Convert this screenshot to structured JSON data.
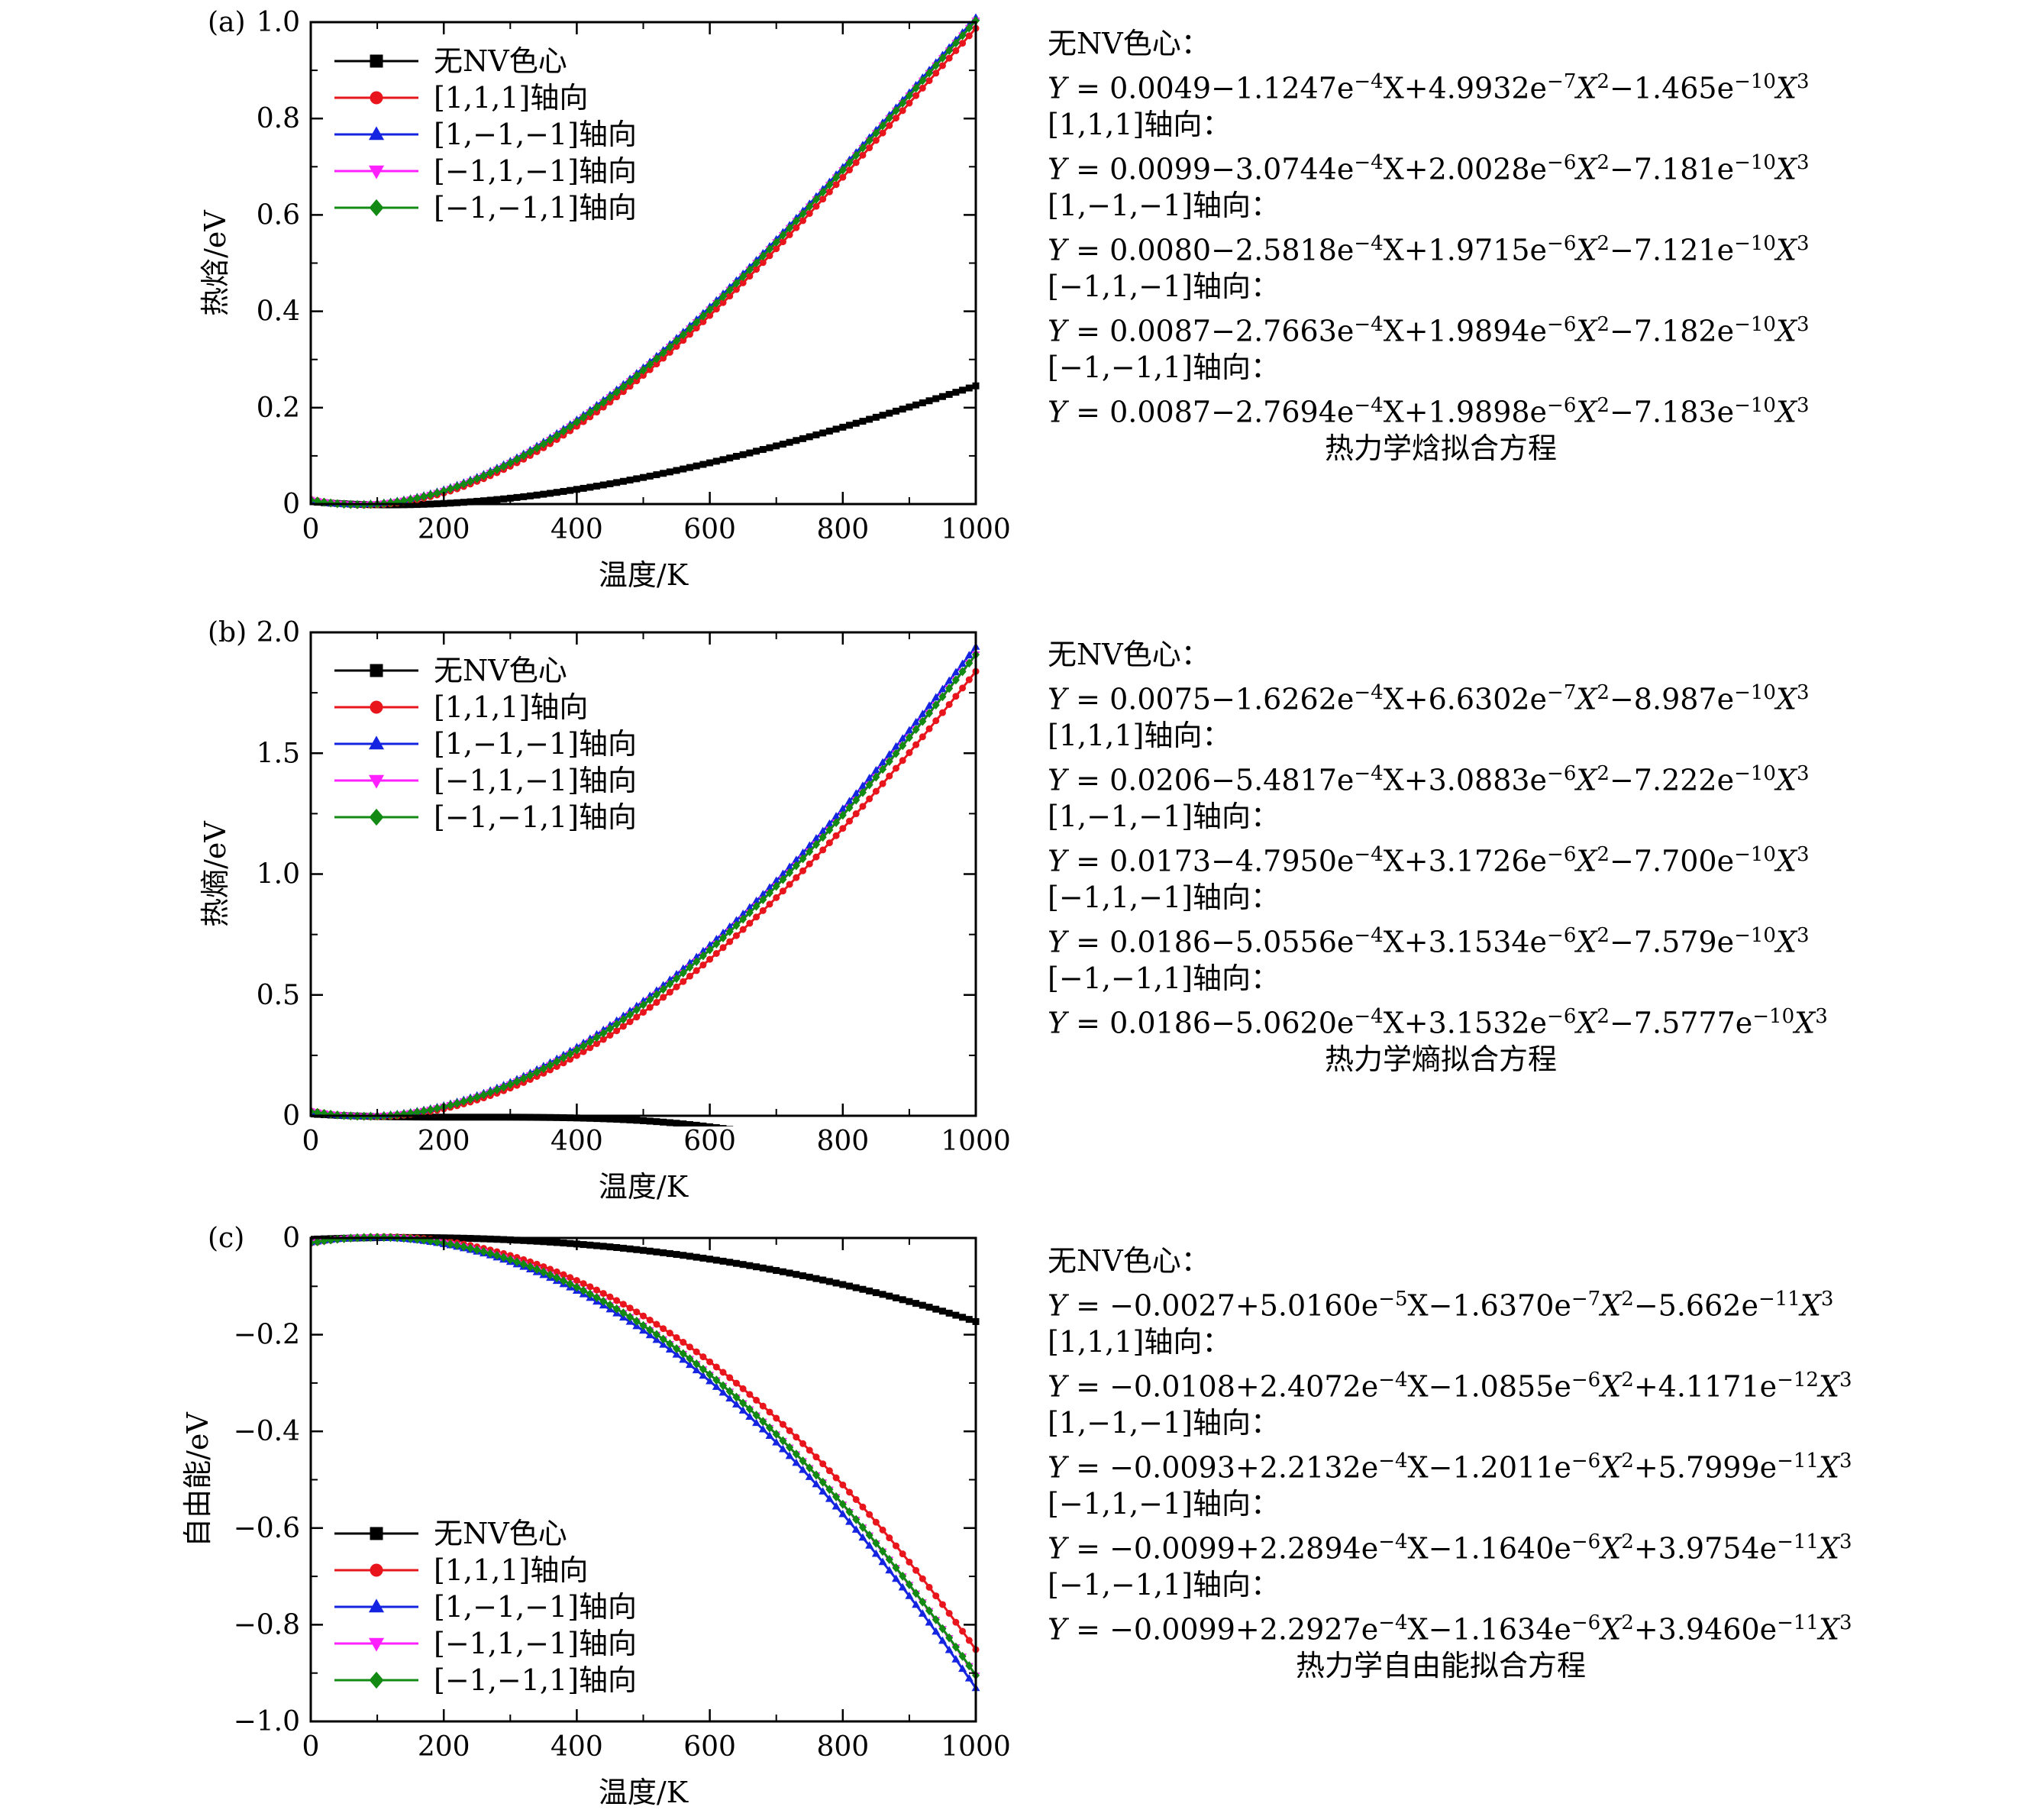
{
  "colors": {
    "no_nv": "#000000",
    "axis_111": "#e8161c",
    "axis_1m1m1": "#1424e0",
    "axis_m11m1": "#ff20ff",
    "axis_m1m11": "#138a13"
  },
  "chart_data": [
    {
      "id": "a",
      "type": "line",
      "panel_label": "(a)",
      "xlabel": "温度/K",
      "ylabel": "热焓/eV",
      "xlim": [
        0,
        1000
      ],
      "ylim": [
        0,
        1.0
      ],
      "xticks": [
        0,
        200,
        400,
        600,
        800,
        1000
      ],
      "xtick_labels": [
        "0",
        "200",
        "400",
        "600",
        "800",
        "1000"
      ],
      "yticks": [
        0,
        0.2,
        0.4,
        0.6,
        0.8,
        1.0
      ],
      "ytick_labels": [
        "0",
        "0.2",
        "0.4",
        "0.6",
        "0.8",
        "1.0"
      ],
      "legend_position": "top-left",
      "series": [
        {
          "name": "无NV色心",
          "marker": "square",
          "color": "no_nv",
          "coef": [
            0.0049,
            -0.00011247,
            4.9932e-07,
            -1.465e-10
          ]
        },
        {
          "name": "[1,1,1]轴向",
          "marker": "circle",
          "color": "axis_111",
          "coef": [
            0.0099,
            -0.00030744,
            2.0028e-06,
            -7.181e-10
          ]
        },
        {
          "name": "[1,−1,−1]轴向",
          "marker": "triangle-up",
          "color": "axis_1m1m1",
          "coef": [
            0.008,
            -0.00025818,
            1.9715e-06,
            -7.121e-10
          ]
        },
        {
          "name": "[−1,1,−1]轴向",
          "marker": "triangle-down",
          "color": "axis_m11m1",
          "coef": [
            0.0087,
            -0.00027663,
            1.9894e-06,
            -7.182e-10
          ]
        },
        {
          "name": "[−1,−1,1]轴向",
          "marker": "diamond",
          "color": "axis_m1m11",
          "coef": [
            0.0087,
            -0.00027694,
            1.9898e-06,
            -7.183e-10
          ]
        }
      ]
    },
    {
      "id": "b",
      "type": "line",
      "panel_label": "(b)",
      "xlabel": "温度/K",
      "ylabel": "热熵/eV",
      "xlim": [
        0,
        1000
      ],
      "ylim": [
        0,
        2.0
      ],
      "xticks": [
        0,
        200,
        400,
        600,
        800,
        1000
      ],
      "xtick_labels": [
        "0",
        "200",
        "400",
        "600",
        "800",
        "1000"
      ],
      "yticks": [
        0,
        0.5,
        1.0,
        1.5,
        2.0
      ],
      "ytick_labels": [
        "0",
        "0.5",
        "1.0",
        "1.5",
        "2.0"
      ],
      "legend_position": "top-left",
      "series": [
        {
          "name": "无NV色心",
          "marker": "square",
          "color": "no_nv",
          "coef": [
            0.0075,
            -0.00016262,
            6.6302e-07,
            -8.987e-10
          ]
        },
        {
          "name": "[1,1,1]轴向",
          "marker": "circle",
          "color": "axis_111",
          "coef": [
            0.0206,
            -0.00054817,
            3.0883e-06,
            -7.222e-10
          ]
        },
        {
          "name": "[1,−1,−1]轴向",
          "marker": "triangle-up",
          "color": "axis_1m1m1",
          "coef": [
            0.0173,
            -0.0004795,
            3.1726e-06,
            -7.7e-10
          ]
        },
        {
          "name": "[−1,1,−1]轴向",
          "marker": "triangle-down",
          "color": "axis_m11m1",
          "coef": [
            0.0186,
            -0.00050556,
            3.1534e-06,
            -7.579e-10
          ]
        },
        {
          "name": "[−1,−1,1]轴向",
          "marker": "diamond",
          "color": "axis_m1m11",
          "coef": [
            0.0186,
            -0.0005062,
            3.1532e-06,
            -7.5777e-10
          ]
        }
      ]
    },
    {
      "id": "c",
      "type": "line",
      "panel_label": "(c)",
      "xlabel": "温度/K",
      "ylabel": "自由能/eV",
      "xlim": [
        0,
        1000
      ],
      "ylim": [
        -1.0,
        0
      ],
      "xticks": [
        0,
        200,
        400,
        600,
        800,
        1000
      ],
      "xtick_labels": [
        "0",
        "200",
        "400",
        "600",
        "800",
        "1000"
      ],
      "yticks": [
        0,
        -0.2,
        -0.4,
        -0.6,
        -0.8,
        -1.0
      ],
      "ytick_labels": [
        "0",
        "−0.2",
        "−0.4",
        "−0.6",
        "−0.8",
        "−1.0"
      ],
      "legend_position": "bottom-left",
      "series": [
        {
          "name": "无NV色心",
          "marker": "square",
          "color": "no_nv",
          "coef": [
            -0.0027,
            5.016e-05,
            -1.637e-07,
            -5.662e-11
          ]
        },
        {
          "name": "[1,1,1]轴向",
          "marker": "circle",
          "color": "axis_111",
          "coef": [
            -0.0108,
            0.00024072,
            -1.0855e-06,
            4.1171e-12
          ]
        },
        {
          "name": "[1,−1,−1]轴向",
          "marker": "triangle-up",
          "color": "axis_1m1m1",
          "coef": [
            -0.0093,
            0.00022132,
            -1.2011e-06,
            5.7999e-11
          ]
        },
        {
          "name": "[−1,1,−1]轴向",
          "marker": "triangle-down",
          "color": "axis_m11m1",
          "coef": [
            -0.0099,
            0.00022894,
            -1.164e-06,
            3.9754e-11
          ]
        },
        {
          "name": "[−1,−1,1]轴向",
          "marker": "diamond",
          "color": "axis_m1m11",
          "coef": [
            -0.0099,
            0.00022927,
            -1.1634e-06,
            3.946e-11
          ]
        }
      ]
    }
  ],
  "equations": {
    "a": {
      "caption": "热力学焓拟合方程",
      "items": [
        {
          "name": "无NV色心：",
          "y": "Y",
          "eq": " = 0.0049",
          "t1": "−1.1247e",
          "e1": "−4",
          "t2": "X+4.9932e",
          "e2": "−7",
          "t3": "X",
          "p3": "2",
          "t4": "−1.465e",
          "e4": "−10",
          "t5": "X",
          "p5": "3"
        },
        {
          "name": "[1,1,1]轴向：",
          "y": "Y",
          "eq": " = 0.0099",
          "t1": "−3.0744e",
          "e1": "−4",
          "t2": "X+2.0028e",
          "e2": "−6",
          "t3": "X",
          "p3": "2",
          "t4": "−7.181e",
          "e4": "−10",
          "t5": "X",
          "p5": "3"
        },
        {
          "name": "[1,−1,−1]轴向：",
          "y": "Y",
          "eq": " = 0.0080",
          "t1": "−2.5818e",
          "e1": "−4",
          "t2": "X+1.9715e",
          "e2": "−6",
          "t3": "X",
          "p3": "2",
          "t4": "−7.121e",
          "e4": "−10",
          "t5": "X",
          "p5": "3"
        },
        {
          "name": "[−1,1,−1]轴向：",
          "y": "Y",
          "eq": " = 0.0087",
          "t1": "−2.7663e",
          "e1": "−4",
          "t2": "X+1.9894e",
          "e2": "−6",
          "t3": "X",
          "p3": "2",
          "t4": "−7.182e",
          "e4": "−10",
          "t5": "X",
          "p5": "3"
        },
        {
          "name": "[−1,−1,1]轴向：",
          "y": "Y",
          "eq": " = 0.0087",
          "t1": "−2.7694e",
          "e1": "−4",
          "t2": "X+1.9898e",
          "e2": "−6",
          "t3": "X",
          "p3": "2",
          "t4": "−7.183e",
          "e4": "−10",
          "t5": "X",
          "p5": "3"
        }
      ]
    },
    "b": {
      "caption": "热力学熵拟合方程",
      "items": [
        {
          "name": "无NV色心：",
          "y": "Y",
          "eq": " = 0.0075",
          "t1": "−1.6262e",
          "e1": "−4",
          "t2": "X+6.6302e",
          "e2": "−7",
          "t3": "X",
          "p3": "2",
          "t4": "−8.987e",
          "e4": "−10",
          "t5": "X",
          "p5": "3"
        },
        {
          "name": "[1,1,1]轴向：",
          "y": "Y",
          "eq": " = 0.0206",
          "t1": "−5.4817e",
          "e1": "−4",
          "t2": "X+3.0883e",
          "e2": "−6",
          "t3": "X",
          "p3": "2",
          "t4": "−7.222e",
          "e4": "−10",
          "t5": "X",
          "p5": "3"
        },
        {
          "name": "[1,−1,−1]轴向：",
          "y": "Y",
          "eq": " = 0.0173",
          "t1": "−4.7950e",
          "e1": "−4",
          "t2": "X+3.1726e",
          "e2": "−6",
          "t3": "X",
          "p3": "2",
          "t4": "−7.700e",
          "e4": "−10",
          "t5": "X",
          "p5": "3"
        },
        {
          "name": "[−1,1,−1]轴向：",
          "y": "Y",
          "eq": " = 0.0186",
          "t1": "−5.0556e",
          "e1": "−4",
          "t2": "X+3.1534e",
          "e2": "−6",
          "t3": "X",
          "p3": "2",
          "t4": "−7.579e",
          "e4": "−10",
          "t5": "X",
          "p5": "3"
        },
        {
          "name": "[−1,−1,1]轴向：",
          "y": "Y",
          "eq": " = 0.0186",
          "t1": "−5.0620e",
          "e1": "−4",
          "t2": "X+3.1532e",
          "e2": "−6",
          "t3": "X",
          "p3": "2",
          "t4": "−7.5777e",
          "e4": "−10",
          "t5": "X",
          "p5": "3"
        }
      ]
    },
    "c": {
      "caption": "热力学自由能拟合方程",
      "items": [
        {
          "name": "无NV色心：",
          "y": "Y",
          "eq": " = −0.0027",
          "t1": "+5.0160e",
          "e1": "−5",
          "t2": "X−1.6370e",
          "e2": "−7",
          "t3": "X",
          "p3": "2",
          "t4": "−5.662e",
          "e4": "−11",
          "t5": "X",
          "p5": "3"
        },
        {
          "name": "[1,1,1]轴向：",
          "y": "Y",
          "eq": " = −0.0108",
          "t1": "+2.4072e",
          "e1": "−4",
          "t2": "X−1.0855e",
          "e2": "−6",
          "t3": "X",
          "p3": "2",
          "t4": "+4.1171e",
          "e4": "−12",
          "t5": "X",
          "p5": "3"
        },
        {
          "name": "[1,−1,−1]轴向：",
          "y": "Y",
          "eq": " = −0.0093",
          "t1": "+2.2132e",
          "e1": "−4",
          "t2": "X−1.2011e",
          "e2": "−6",
          "t3": "X",
          "p3": "2",
          "t4": "+5.7999e",
          "e4": "−11",
          "t5": "X",
          "p5": "3"
        },
        {
          "name": "[−1,1,−1]轴向：",
          "y": "Y",
          "eq": " = −0.0099",
          "t1": "+2.2894e",
          "e1": "−4",
          "t2": "X−1.1640e",
          "e2": "−6",
          "t3": "X",
          "p3": "2",
          "t4": "+3.9754e",
          "e4": "−11",
          "t5": "X",
          "p5": "3"
        },
        {
          "name": "[−1,−1,1]轴向：",
          "y": "Y",
          "eq": " = −0.0099",
          "t1": "+2.2927e",
          "e1": "−4",
          "t2": "X−1.1634e",
          "e2": "−6",
          "t3": "X",
          "p3": "2",
          "t4": "+3.9460e",
          "e4": "−11",
          "t5": "X",
          "p5": "3"
        }
      ]
    }
  }
}
